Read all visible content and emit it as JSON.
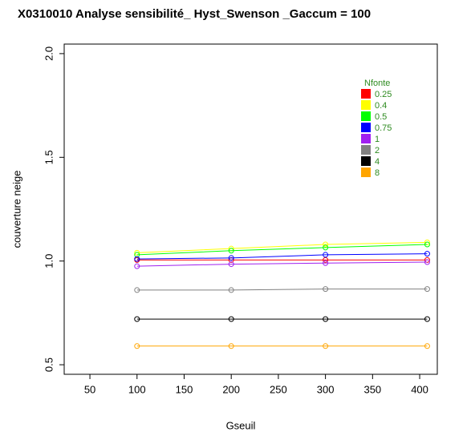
{
  "chart_data": {
    "type": "line",
    "title": "X0310010 Analyse sensibilité_ Hyst_Swenson _Gaccum =  100",
    "x_label": "Gseuil",
    "y_label": "couverture neige",
    "x": [
      100,
      200,
      300,
      408
    ],
    "series": [
      {
        "name": "0.25",
        "color": "#ff0000",
        "values": [
          1.005,
          1.005,
          1.005,
          1.005
        ]
      },
      {
        "name": "0.4",
        "color": "#ffff00",
        "values": [
          1.04,
          1.06,
          1.08,
          1.09
        ]
      },
      {
        "name": "0.5",
        "color": "#00ff00",
        "values": [
          1.03,
          1.05,
          1.065,
          1.08
        ]
      },
      {
        "name": "0.75",
        "color": "#0000ff",
        "values": [
          1.01,
          1.015,
          1.03,
          1.035
        ]
      },
      {
        "name": "1",
        "color": "#a020f0",
        "values": [
          0.975,
          0.985,
          0.99,
          0.995
        ]
      },
      {
        "name": "2",
        "color": "#808080",
        "values": [
          0.86,
          0.86,
          0.865,
          0.865
        ]
      },
      {
        "name": "4",
        "color": "#000000",
        "values": [
          0.72,
          0.72,
          0.72,
          0.72
        ]
      },
      {
        "name": "8",
        "color": "#ffa500",
        "values": [
          0.59,
          0.59,
          0.59,
          0.59
        ]
      }
    ],
    "legend_title": "Nfonte",
    "legend_position": "top-right",
    "legend_color": "#2e8b20",
    "xlim": [
      22.7,
      418.7
    ],
    "xticks": [
      50,
      100,
      150,
      200,
      250,
      300,
      350,
      400
    ],
    "ylim": [
      0.454,
      2.046
    ],
    "yticks": [
      0.5,
      {
        "value": 1,
        "label": "1.0"
      },
      1.5,
      {
        "value": 2,
        "label": "2.0"
      }
    ],
    "grid": false
  }
}
